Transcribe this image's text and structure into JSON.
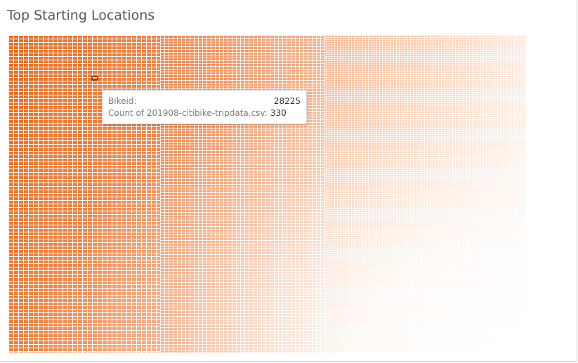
{
  "title": "Top Starting Locations",
  "colors": {
    "high": "#ee6a1a",
    "low": "#ffffff",
    "cell_border": "#ffffff",
    "highlight_border": "#1a1a1a"
  },
  "chart_data": {
    "type": "heatmap",
    "description_kind": "treemap of counts per bikeid",
    "title": "Top Starting Locations",
    "color_scale": "sequential-orange",
    "legend": "none",
    "highlighted_mark": {
      "bikeid": "28225",
      "count": 330
    }
  },
  "tooltip": {
    "row1_label": "Bikeid:",
    "row1_value": "28225",
    "row2_label": "Count of 201908-citibike-tripdata.csv:",
    "row2_value": "330"
  }
}
